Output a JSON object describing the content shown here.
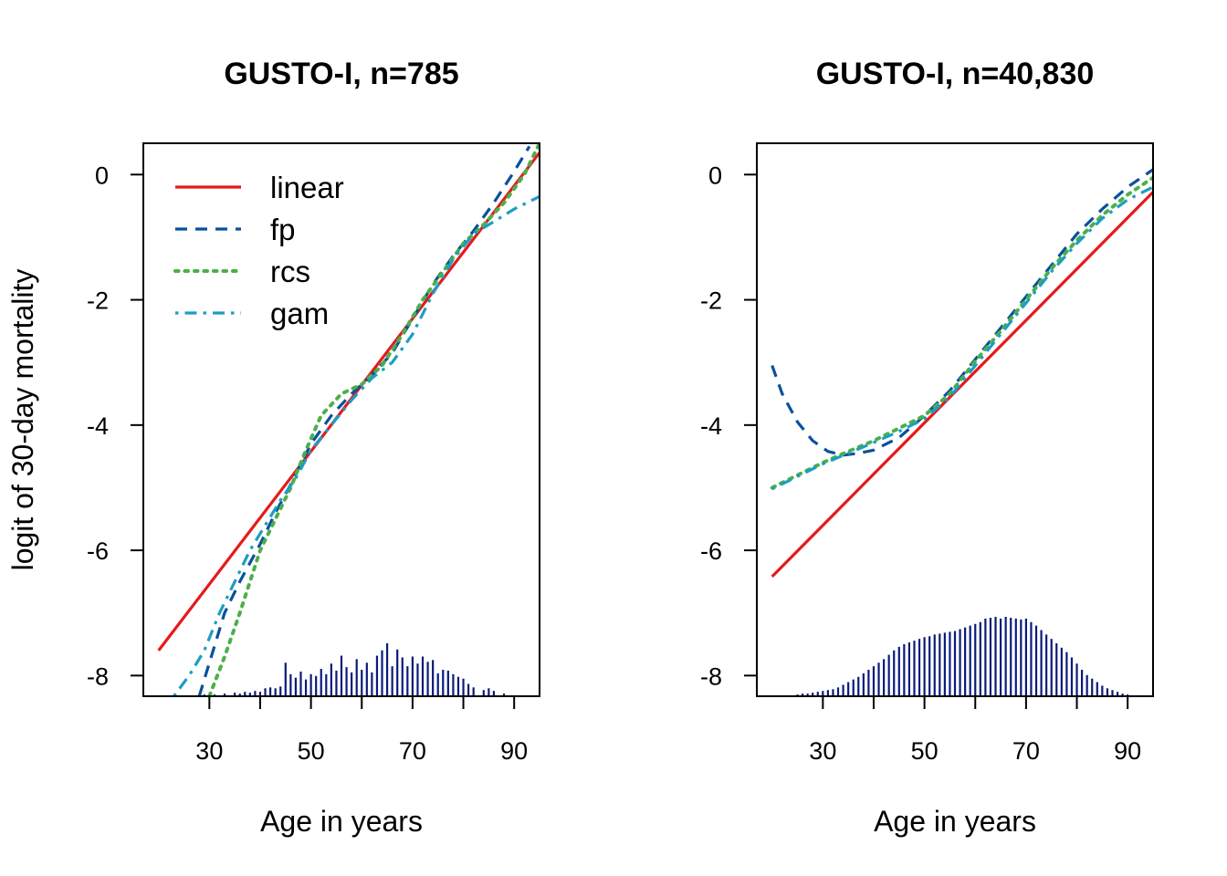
{
  "colors": {
    "linear": "#E41A1C",
    "fp": "#08519C",
    "rcs": "#4DAF4A",
    "gam": "#1B9EC2",
    "histogram": "#0A1A7A"
  },
  "chart_data": [
    {
      "type": "line",
      "title": "GUSTO-I, n=785",
      "xlabel": "Age in years",
      "ylabel": "logit of 30-day mortality",
      "xlim": [
        17,
        95
      ],
      "ylim": [
        -8.33,
        0.5
      ],
      "xticks": [
        30,
        50,
        70,
        90
      ],
      "xticks_minor": [
        40,
        60,
        80
      ],
      "yticks": [
        0,
        -2,
        -4,
        -6,
        -8
      ],
      "legend": {
        "position": "top-left",
        "entries": [
          "linear",
          "fp",
          "rcs",
          "gam"
        ]
      },
      "series": [
        {
          "name": "linear",
          "style": "solid",
          "x": [
            20,
            95
          ],
          "y": [
            -7.6,
            0.35
          ]
        },
        {
          "name": "fp",
          "style": "dashed",
          "x": [
            28,
            30,
            33,
            36,
            40,
            43,
            46,
            50,
            54,
            58,
            62,
            66,
            70,
            74,
            78,
            82,
            86,
            90,
            93
          ],
          "y": [
            -8.33,
            -7.8,
            -7.0,
            -6.5,
            -5.9,
            -5.4,
            -4.95,
            -4.3,
            -3.85,
            -3.5,
            -3.2,
            -2.85,
            -2.3,
            -1.75,
            -1.3,
            -0.9,
            -0.45,
            0.05,
            0.45
          ]
        },
        {
          "name": "rcs",
          "style": "dotted",
          "x": [
            30,
            33,
            36,
            40,
            43,
            46,
            49,
            52,
            56,
            60,
            64,
            68,
            72,
            76,
            80,
            84,
            88,
            92,
            95
          ],
          "y": [
            -8.33,
            -7.7,
            -7.0,
            -6.0,
            -5.5,
            -5.0,
            -4.4,
            -3.85,
            -3.5,
            -3.35,
            -3.05,
            -2.55,
            -2.0,
            -1.55,
            -1.1,
            -0.8,
            -0.45,
            0.0,
            0.5
          ]
        },
        {
          "name": "gam",
          "style": "dot-dash",
          "x": [
            23,
            26,
            29,
            32,
            35,
            38,
            41,
            44,
            47,
            50,
            54,
            58,
            62,
            66,
            70,
            74,
            78,
            82,
            86,
            90,
            95
          ],
          "y": [
            -8.33,
            -8.0,
            -7.6,
            -7.0,
            -6.5,
            -6.0,
            -5.6,
            -5.2,
            -4.85,
            -4.4,
            -4.0,
            -3.6,
            -3.25,
            -3.0,
            -2.55,
            -1.9,
            -1.35,
            -0.95,
            -0.75,
            -0.55,
            -0.35
          ]
        }
      ],
      "age_histogram": {
        "x": [
          29,
          31,
          33,
          35,
          36,
          37,
          38,
          39,
          40,
          41,
          42,
          43,
          44,
          45,
          46,
          47,
          48,
          49,
          50,
          51,
          52,
          53,
          54,
          55,
          56,
          57,
          58,
          59,
          60,
          61,
          62,
          63,
          64,
          65,
          66,
          67,
          68,
          69,
          70,
          71,
          72,
          73,
          74,
          75,
          76,
          77,
          78,
          79,
          80,
          81,
          82,
          84,
          85,
          86,
          88
        ],
        "height": [
          0.02,
          0.02,
          0.03,
          0.04,
          0.03,
          0.05,
          0.04,
          0.06,
          0.05,
          0.09,
          0.1,
          0.09,
          0.11,
          0.38,
          0.25,
          0.21,
          0.28,
          0.19,
          0.25,
          0.23,
          0.31,
          0.25,
          0.37,
          0.29,
          0.46,
          0.33,
          0.27,
          0.42,
          0.3,
          0.38,
          0.27,
          0.46,
          0.52,
          0.6,
          0.34,
          0.53,
          0.44,
          0.34,
          0.45,
          0.37,
          0.45,
          0.39,
          0.41,
          0.26,
          0.3,
          0.29,
          0.25,
          0.22,
          0.2,
          0.14,
          0.1,
          0.07,
          0.09,
          0.06,
          0.03
        ]
      }
    },
    {
      "type": "line",
      "title": "GUSTO-I, n=40,830",
      "xlabel": "Age in years",
      "ylabel": "",
      "xlim": [
        17,
        95
      ],
      "ylim": [
        -8.33,
        0.5
      ],
      "xticks": [
        30,
        50,
        70,
        90
      ],
      "xticks_minor": [
        40,
        60,
        80
      ],
      "yticks": [
        0,
        -2,
        -4,
        -6,
        -8
      ],
      "series": [
        {
          "name": "linear",
          "style": "solid",
          "x": [
            20,
            95
          ],
          "y": [
            -6.42,
            -0.28
          ]
        },
        {
          "name": "fp",
          "style": "dashed",
          "x": [
            20,
            22,
            25,
            28,
            31,
            34,
            37,
            40,
            45,
            50,
            55,
            60,
            65,
            70,
            75,
            80,
            85,
            90,
            95
          ],
          "y": [
            -3.05,
            -3.5,
            -3.95,
            -4.25,
            -4.42,
            -4.48,
            -4.45,
            -4.4,
            -4.2,
            -3.85,
            -3.45,
            -2.95,
            -2.45,
            -1.95,
            -1.45,
            -0.95,
            -0.55,
            -0.2,
            0.08
          ]
        },
        {
          "name": "rcs",
          "style": "dotted",
          "x": [
            20,
            25,
            30,
            35,
            40,
            45,
            50,
            55,
            60,
            65,
            70,
            75,
            80,
            85,
            90,
            95
          ],
          "y": [
            -5.0,
            -4.8,
            -4.6,
            -4.42,
            -4.25,
            -4.05,
            -3.85,
            -3.5,
            -2.98,
            -2.5,
            -2.0,
            -1.5,
            -1.05,
            -0.65,
            -0.32,
            -0.05
          ]
        },
        {
          "name": "gam",
          "style": "dot-dash",
          "x": [
            20,
            25,
            30,
            35,
            40,
            45,
            50,
            55,
            60,
            65,
            70,
            75,
            80,
            85,
            90,
            95
          ],
          "y": [
            -5.02,
            -4.82,
            -4.62,
            -4.45,
            -4.28,
            -4.1,
            -3.9,
            -3.55,
            -3.05,
            -2.55,
            -2.05,
            -1.55,
            -1.1,
            -0.7,
            -0.4,
            -0.2
          ]
        }
      ],
      "age_histogram": {
        "x": [
          25,
          26,
          27,
          28,
          29,
          30,
          31,
          32,
          33,
          34,
          35,
          36,
          37,
          38,
          39,
          40,
          41,
          42,
          43,
          44,
          45,
          46,
          47,
          48,
          49,
          50,
          51,
          52,
          53,
          54,
          55,
          56,
          57,
          58,
          59,
          60,
          61,
          62,
          63,
          64,
          65,
          66,
          67,
          68,
          69,
          70,
          71,
          72,
          73,
          74,
          75,
          76,
          77,
          78,
          79,
          80,
          81,
          82,
          83,
          84,
          85,
          86,
          87,
          88,
          89,
          90
        ],
        "height": [
          0.02,
          0.03,
          0.03,
          0.04,
          0.05,
          0.06,
          0.07,
          0.08,
          0.1,
          0.13,
          0.16,
          0.19,
          0.22,
          0.26,
          0.3,
          0.34,
          0.38,
          0.42,
          0.47,
          0.52,
          0.56,
          0.59,
          0.61,
          0.63,
          0.65,
          0.67,
          0.68,
          0.7,
          0.71,
          0.72,
          0.73,
          0.74,
          0.76,
          0.78,
          0.8,
          0.82,
          0.84,
          0.88,
          0.89,
          0.9,
          0.88,
          0.9,
          0.89,
          0.88,
          0.87,
          0.88,
          0.84,
          0.8,
          0.75,
          0.7,
          0.65,
          0.6,
          0.55,
          0.5,
          0.44,
          0.37,
          0.3,
          0.24,
          0.2,
          0.16,
          0.12,
          0.09,
          0.07,
          0.05,
          0.03,
          0.02
        ]
      }
    }
  ]
}
